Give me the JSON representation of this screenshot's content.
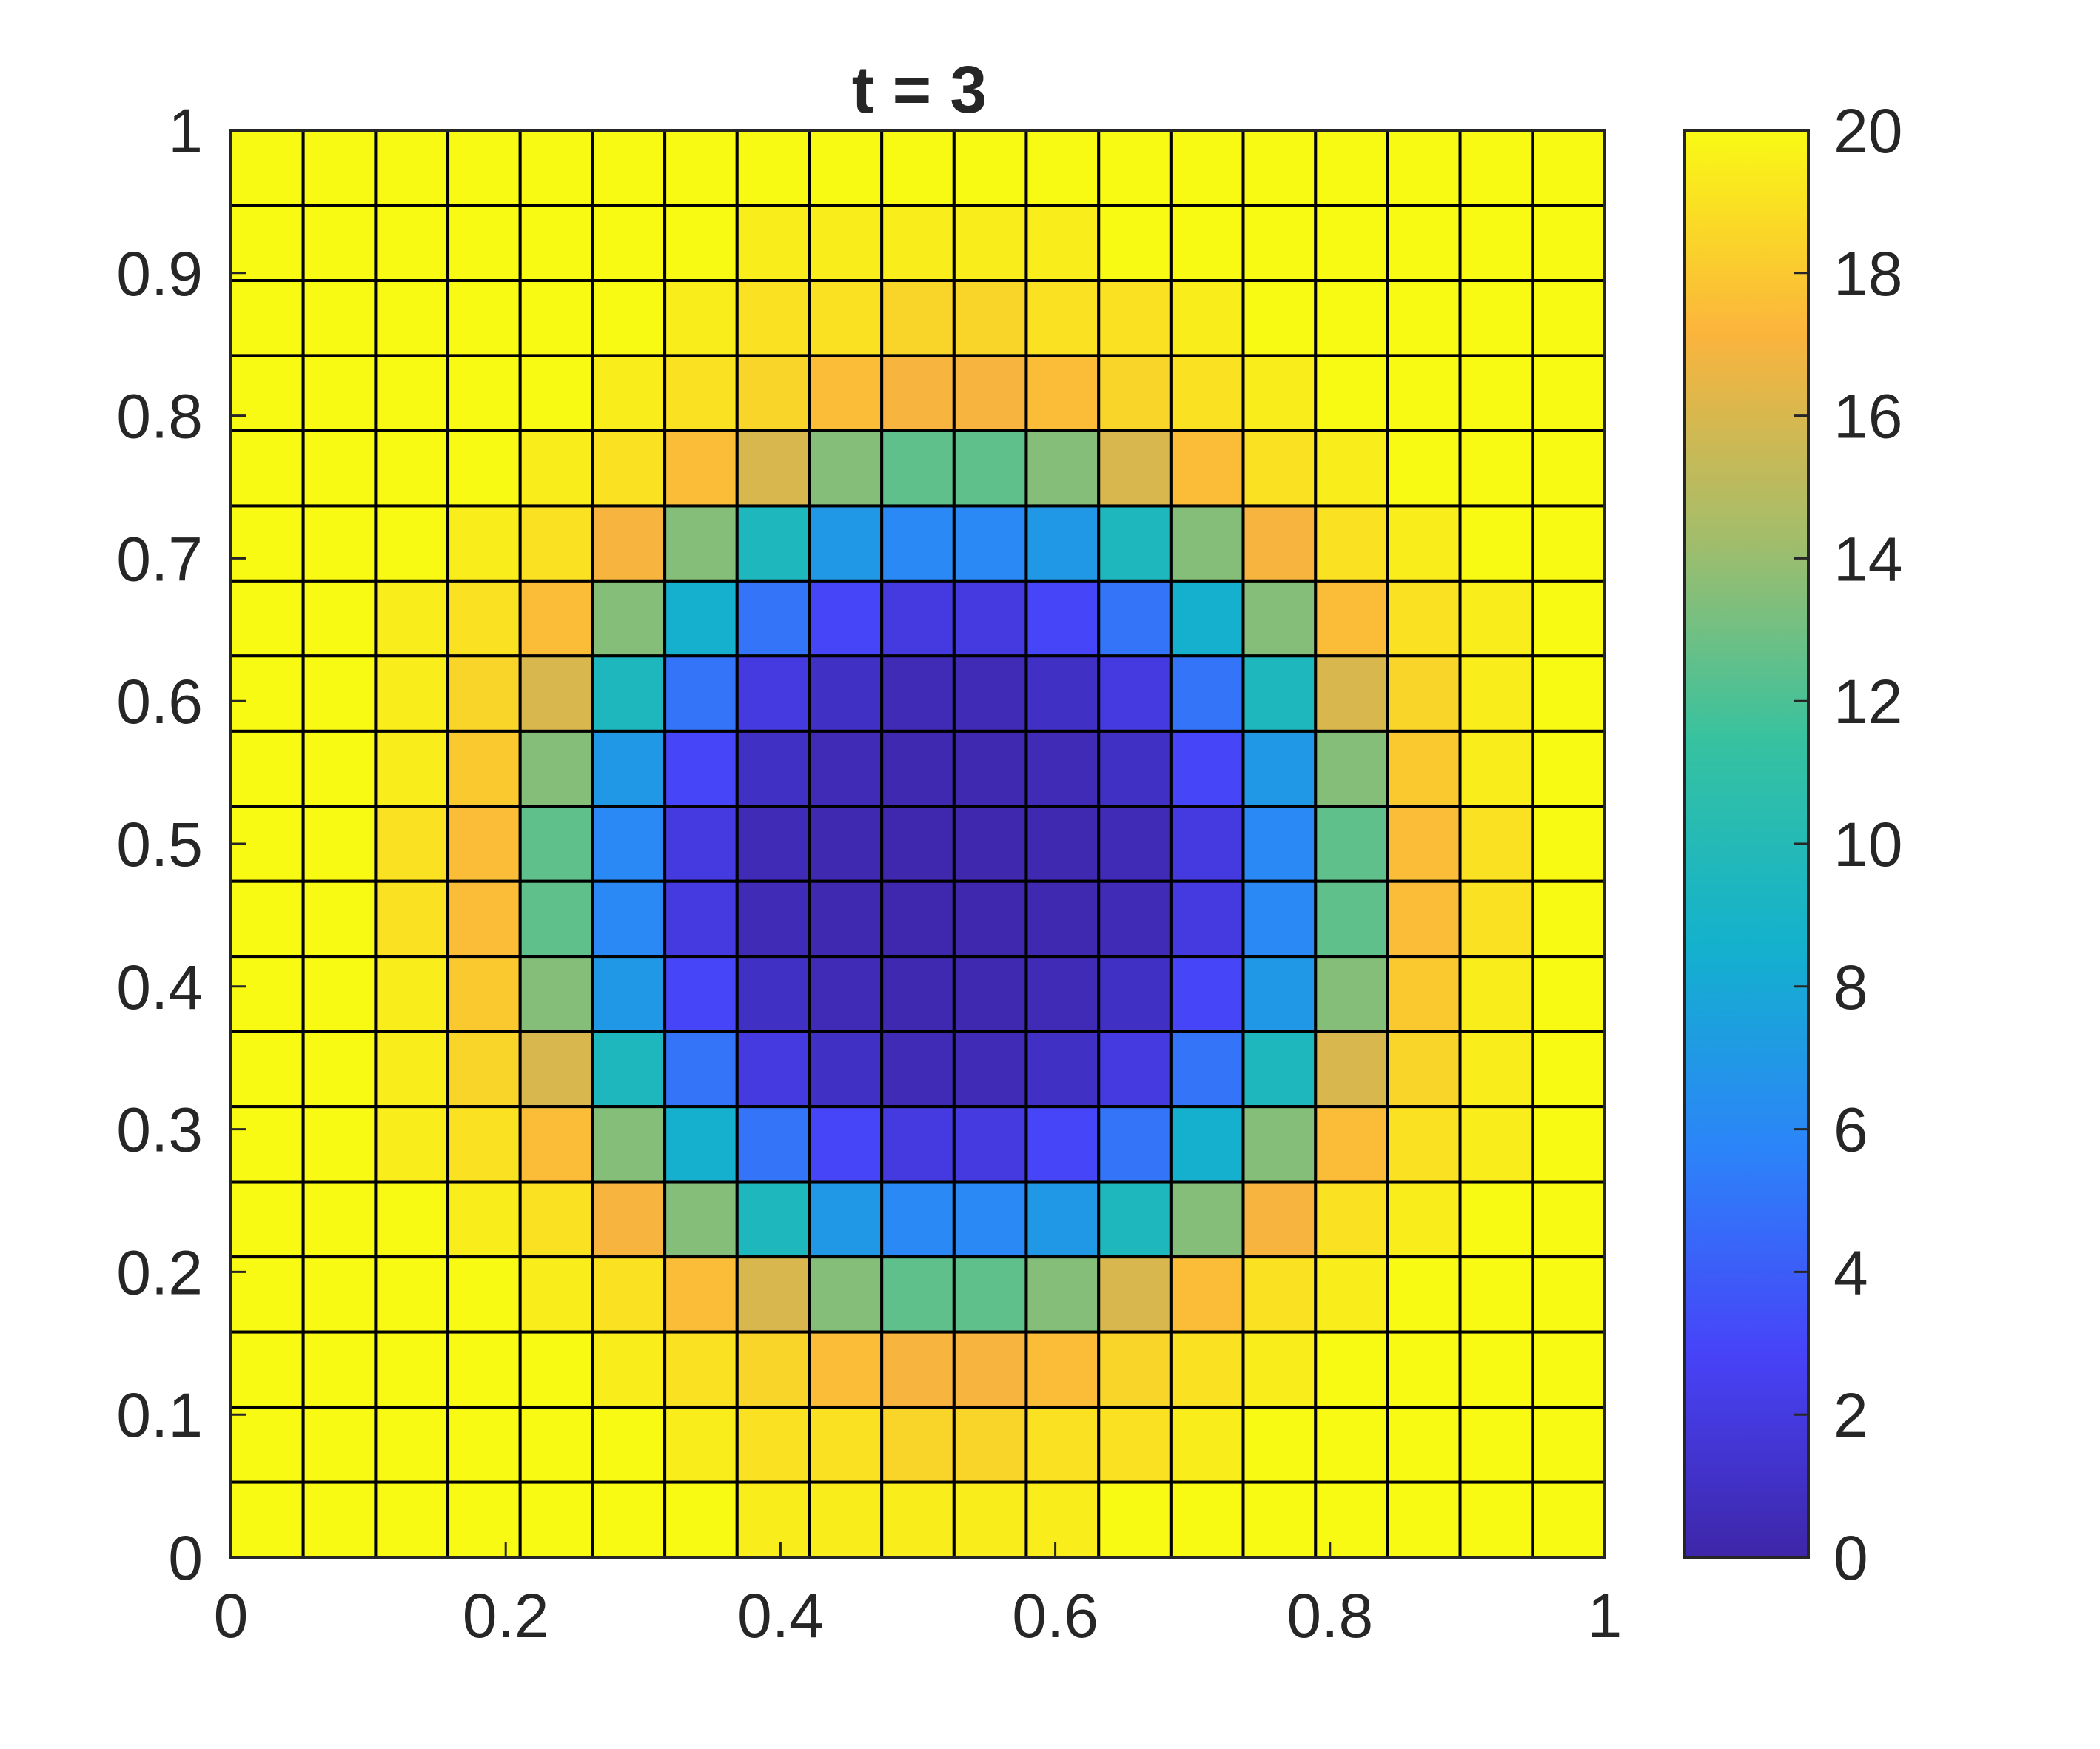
{
  "chart_data": {
    "type": "heatmap",
    "title": "t = 3",
    "xlabel": "",
    "ylabel": "",
    "xlim": [
      0,
      1
    ],
    "ylim": [
      0,
      1
    ],
    "x_ticks": [
      {
        "value": 0,
        "label": "0"
      },
      {
        "value": 0.2,
        "label": "0.2"
      },
      {
        "value": 0.4,
        "label": "0.4"
      },
      {
        "value": 0.6,
        "label": "0.6"
      },
      {
        "value": 0.8,
        "label": "0.8"
      },
      {
        "value": 1,
        "label": "1"
      }
    ],
    "y_ticks": [
      {
        "value": 0,
        "label": "0"
      },
      {
        "value": 0.1,
        "label": "0.1"
      },
      {
        "value": 0.2,
        "label": "0.2"
      },
      {
        "value": 0.3,
        "label": "0.3"
      },
      {
        "value": 0.4,
        "label": "0.4"
      },
      {
        "value": 0.5,
        "label": "0.5"
      },
      {
        "value": 0.6,
        "label": "0.6"
      },
      {
        "value": 0.7,
        "label": "0.7"
      },
      {
        "value": 0.8,
        "label": "0.8"
      },
      {
        "value": 0.9,
        "label": "0.9"
      },
      {
        "value": 1,
        "label": "1"
      }
    ],
    "grid": true,
    "colorbar": {
      "range": [
        0,
        20
      ],
      "ticks": [
        {
          "value": 0,
          "label": "0"
        },
        {
          "value": 2,
          "label": "2"
        },
        {
          "value": 4,
          "label": "4"
        },
        {
          "value": 6,
          "label": "6"
        },
        {
          "value": 8,
          "label": "8"
        },
        {
          "value": 10,
          "label": "10"
        },
        {
          "value": 12,
          "label": "12"
        },
        {
          "value": 14,
          "label": "14"
        },
        {
          "value": 16,
          "label": "16"
        },
        {
          "value": 18,
          "label": "18"
        },
        {
          "value": 20,
          "label": "20"
        }
      ],
      "colormap": [
        "#3e26a8",
        "#4743f8",
        "#2c84f9",
        "#13b1cd",
        "#36c2a0",
        "#a3bd6a",
        "#fbb43c",
        "#f9fa14"
      ],
      "placement": "right"
    },
    "x_edges": [
      0,
      0.0526,
      0.1053,
      0.1579,
      0.2105,
      0.2632,
      0.3158,
      0.3684,
      0.4211,
      0.4737,
      0.5263,
      0.5789,
      0.6316,
      0.6842,
      0.7368,
      0.7895,
      0.8421,
      0.8947,
      0.9474,
      1
    ],
    "y_edges": [
      0,
      0.0526,
      0.1053,
      0.1579,
      0.2105,
      0.2632,
      0.3158,
      0.3684,
      0.4211,
      0.4737,
      0.5263,
      0.5789,
      0.6316,
      0.6842,
      0.7368,
      0.7895,
      0.8421,
      0.8947,
      0.9474,
      1
    ],
    "values_rows_top_to_bottom": [
      [
        20,
        20,
        20,
        20,
        20,
        20,
        20,
        20,
        20,
        20,
        20,
        20,
        20,
        20,
        20,
        20,
        20,
        20,
        20
      ],
      [
        20,
        20,
        20,
        20,
        20,
        20,
        20,
        19.5,
        19.5,
        19.5,
        19.5,
        19.5,
        20,
        20,
        20,
        20,
        20,
        20,
        20
      ],
      [
        20,
        20,
        20,
        20,
        20,
        20,
        19.5,
        19,
        19,
        18.5,
        18.5,
        19,
        19,
        19.5,
        20,
        20,
        20,
        20,
        20
      ],
      [
        20,
        20,
        20,
        20,
        20,
        19.5,
        19,
        18.5,
        17.5,
        17,
        17,
        17.5,
        18.5,
        19,
        19.5,
        20,
        20,
        20,
        20
      ],
      [
        20,
        20,
        20,
        20,
        19.5,
        19,
        17.5,
        16,
        13.5,
        12.5,
        12.5,
        13.5,
        16,
        17.5,
        19,
        19.5,
        20,
        20,
        20
      ],
      [
        20,
        20,
        20,
        19.5,
        19,
        17,
        13.5,
        9.5,
        7,
        6,
        6,
        7,
        9.5,
        13.5,
        17,
        19,
        19.5,
        20,
        20
      ],
      [
        20,
        20,
        19.5,
        19,
        17.5,
        13.5,
        8.5,
        5,
        3,
        2,
        2,
        3,
        5,
        8.5,
        13.5,
        17.5,
        19,
        19.5,
        20
      ],
      [
        20,
        20,
        19.5,
        18.5,
        16,
        9.5,
        5,
        2,
        1,
        0.5,
        0.5,
        1,
        2,
        5,
        9.5,
        16,
        18.5,
        19.5,
        20
      ],
      [
        20,
        20,
        19.5,
        18,
        13.5,
        7,
        3,
        1,
        0.5,
        0.3,
        0.3,
        0.5,
        1,
        3,
        7,
        13.5,
        18,
        19.5,
        20
      ],
      [
        20,
        20,
        19,
        17.5,
        12.5,
        6,
        2,
        0.5,
        0.3,
        0.2,
        0.2,
        0.3,
        0.5,
        2,
        6,
        12.5,
        17.5,
        19,
        20
      ],
      [
        20,
        20,
        19,
        17.5,
        12.5,
        6,
        2,
        0.5,
        0.3,
        0.2,
        0.2,
        0.3,
        0.5,
        2,
        6,
        12.5,
        17.5,
        19,
        20
      ],
      [
        20,
        20,
        19.5,
        18,
        13.5,
        7,
        3,
        1,
        0.5,
        0.3,
        0.3,
        0.5,
        1,
        3,
        7,
        13.5,
        18,
        19.5,
        20
      ],
      [
        20,
        20,
        19.5,
        18.5,
        16,
        9.5,
        5,
        2,
        1,
        0.5,
        0.5,
        1,
        2,
        5,
        9.5,
        16,
        18.5,
        19.5,
        20
      ],
      [
        20,
        20,
        19.5,
        19,
        17.5,
        13.5,
        8.5,
        5,
        3,
        2,
        2,
        3,
        5,
        8.5,
        13.5,
        17.5,
        19,
        19.5,
        20
      ],
      [
        20,
        20,
        20,
        19.5,
        19,
        17,
        13.5,
        9.5,
        7,
        6,
        6,
        7,
        9.5,
        13.5,
        17,
        19,
        19.5,
        20,
        20
      ],
      [
        20,
        20,
        20,
        20,
        19.5,
        19,
        17.5,
        16,
        13.5,
        12.5,
        12.5,
        13.5,
        16,
        17.5,
        19,
        19.5,
        20,
        20,
        20
      ],
      [
        20,
        20,
        20,
        20,
        20,
        19.5,
        19,
        18.5,
        17.5,
        17,
        17,
        17.5,
        18.5,
        19,
        19.5,
        20,
        20,
        20,
        20
      ],
      [
        20,
        20,
        20,
        20,
        20,
        20,
        19.5,
        19,
        19,
        18.5,
        18.5,
        19,
        19,
        19.5,
        20,
        20,
        20,
        20,
        20
      ],
      [
        20,
        20,
        20,
        20,
        20,
        20,
        20,
        19.5,
        19.5,
        19.5,
        19.5,
        19.5,
        20,
        20,
        20,
        20,
        20,
        20,
        20
      ]
    ]
  }
}
